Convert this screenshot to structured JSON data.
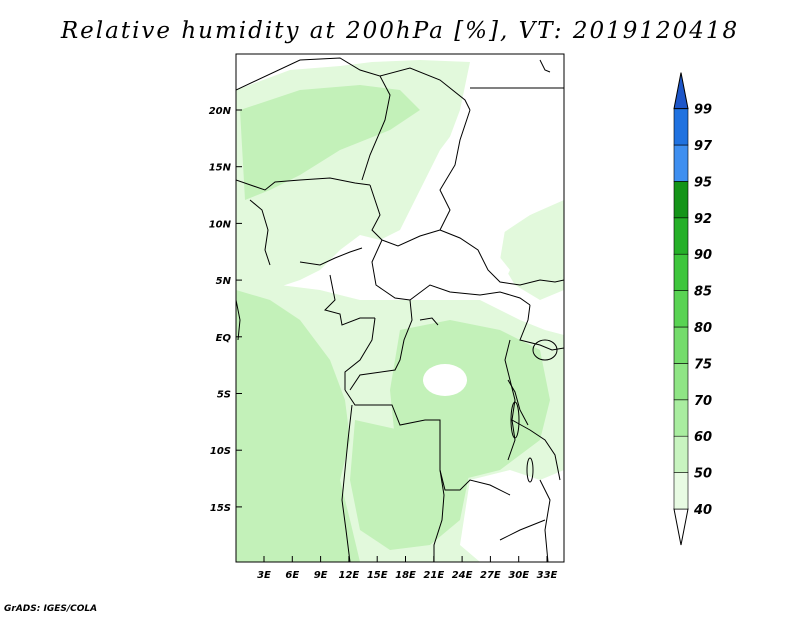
{
  "title": "Relative humidity at 200hPa [%], VT: 2019120418",
  "credit": "GrADS: IGES/COLA",
  "map": {
    "lat_ticks": [
      "20N",
      "15N",
      "10N",
      "5N",
      "EQ",
      "5S",
      "10S",
      "15S"
    ],
    "lon_ticks": [
      "3E",
      "6E",
      "9E",
      "12E",
      "15E",
      "18E",
      "21E",
      "24E",
      "27E",
      "30E",
      "33E"
    ]
  },
  "colorbar": {
    "levels": [
      "40",
      "50",
      "60",
      "70",
      "75",
      "80",
      "85",
      "90",
      "92",
      "95",
      "97",
      "99"
    ],
    "colors": [
      "#e8fbe3",
      "#c8f4c0",
      "#a9edA0",
      "#8fe585",
      "#74dc6b",
      "#59d353",
      "#3ec63c",
      "#25b028",
      "#149418",
      "#3f8ff0",
      "#2072e0",
      "#1d56c8"
    ]
  },
  "colors": {
    "light_green": "#e2f9dc",
    "mid_green": "#c3f1b9",
    "dark_green": "#a2e895",
    "border": "#000000"
  }
}
